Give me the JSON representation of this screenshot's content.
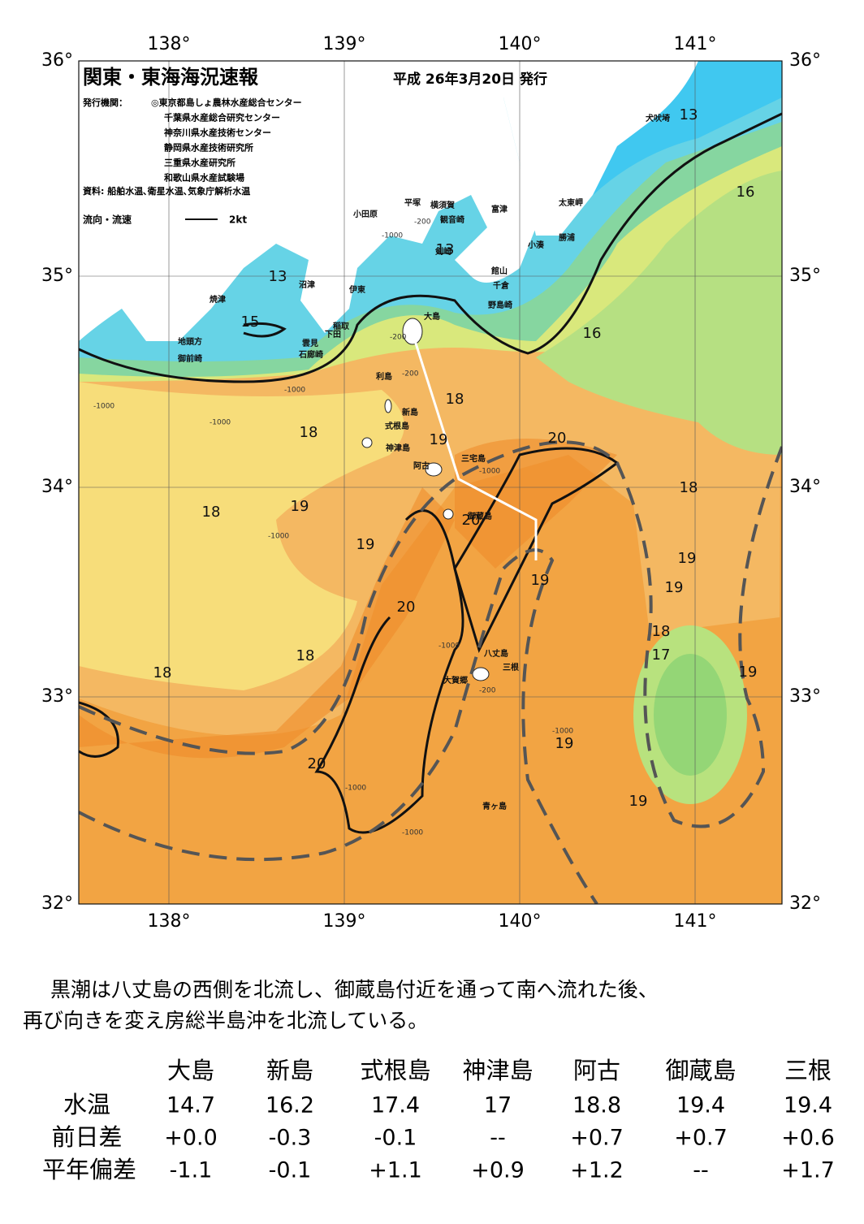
{
  "map": {
    "title": "関東・東海海況速報",
    "date": "平成 26年3月20日 発行",
    "publisher_label": "発行機関：",
    "publishers": [
      "◎東京都島しょ農林水産総合センター",
      "千葉県水産総合研究センター",
      "神奈川県水産技術センター",
      "静岡県水産技術研究所",
      "三重県水産研究所",
      "和歌山県水産試験場"
    ],
    "source": "資料: 船舶水温､衛星水温､気象庁解析水温",
    "legend_flow": "流向・流速",
    "legend_speed": "2kt",
    "lon_labels": [
      "138°",
      "139°",
      "140°",
      "141°"
    ],
    "lat_labels": [
      "36°",
      "35°",
      "34°",
      "33°",
      "32°"
    ],
    "contour_labels": [
      "13",
      "16",
      "13",
      "13",
      "15",
      "16",
      "18",
      "18",
      "19",
      "20",
      "18",
      "18",
      "19",
      "20",
      "19",
      "19",
      "19",
      "19",
      "20",
      "18",
      "17",
      "18",
      "18",
      "19",
      "19",
      "20",
      "19"
    ],
    "places": [
      "犬吠埼",
      "太東岬",
      "勝浦",
      "小湊",
      "富津",
      "横須賀",
      "平塚",
      "観音崎",
      "小田原",
      "剣崎",
      "館山",
      "千倉",
      "野島崎",
      "沼津",
      "伊東",
      "焼津",
      "大島",
      "稲取",
      "下田",
      "雲見",
      "石廊崎",
      "地頭方",
      "御前崎",
      "利島",
      "新島",
      "式根島",
      "神津島",
      "三宅島",
      "阿古",
      "御蔵島",
      "八丈島",
      "三根",
      "大賀郷",
      "青ヶ島"
    ],
    "depth_labels": [
      "-1000",
      "-200",
      "-200",
      "-1000",
      "-200",
      "-1000",
      "-1000",
      "-1000",
      "-1000",
      "-1000",
      "-200",
      "-1000",
      "-1000",
      "-1000"
    ]
  },
  "summary": [
    "黒潮は八丈島の西側を北流し、御蔵島付近を通って南へ流れた後、",
    "再び向きを変え房総半島沖を北流している。"
  ],
  "table": {
    "header": [
      "大島",
      "新島",
      "式根島",
      "神津島",
      "阿古",
      "御蔵島",
      "三根"
    ],
    "rows": [
      [
        "水温",
        "14.7",
        "16.2",
        "17.4",
        "17",
        "18.8",
        "19.4",
        "19.4"
      ],
      [
        "前日差",
        "+0.0",
        "-0.3",
        "-0.1",
        "--",
        "+0.7",
        "+0.7",
        "+0.6"
      ],
      [
        "平年偏差",
        "-1.1",
        "-0.1",
        "+1.1",
        "+0.9",
        "+1.2",
        "--",
        "+1.7"
      ]
    ]
  }
}
